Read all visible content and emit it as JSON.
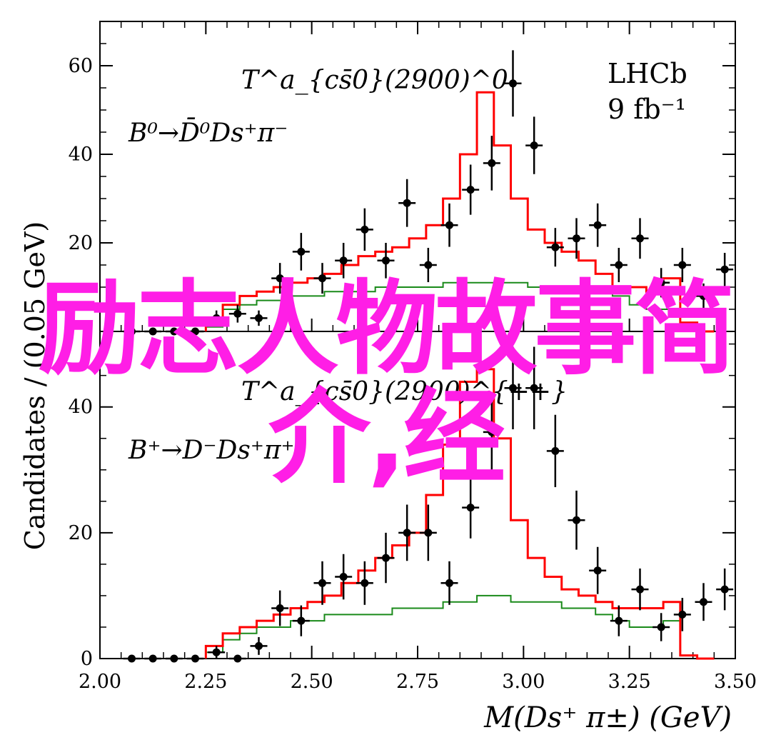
{
  "chart_data": {
    "type": "histogram-with-errorbars",
    "shared_x": {
      "xlabel": "M(Ds⁺ π±) (GeV)",
      "xlim": [
        2.0,
        3.5
      ],
      "xticks": [
        "2.00",
        "2.25",
        "2.50",
        "2.75",
        "3.00",
        "3.25",
        "3.50"
      ]
    },
    "ylabel": "Candidates / (0.05 GeV)",
    "experiment": "LHCb",
    "luminosity": "9 fb⁻¹",
    "panels": [
      {
        "id": "top",
        "resonance": "T^a_{cs̄0}(2900)^0",
        "decay": "B⁰→D̄⁰Ds⁺π⁻",
        "ylim": [
          0,
          70
        ],
        "yticks": [
          "20",
          "40",
          "60"
        ],
        "data": [
          {
            "x": 2.075,
            "y": 0
          },
          {
            "x": 2.125,
            "y": 0
          },
          {
            "x": 2.175,
            "y": 0
          },
          {
            "x": 2.225,
            "y": 0
          },
          {
            "x": 2.275,
            "y": 3
          },
          {
            "x": 2.325,
            "y": 4
          },
          {
            "x": 2.375,
            "y": 3
          },
          {
            "x": 2.425,
            "y": 12
          },
          {
            "x": 2.475,
            "y": 18
          },
          {
            "x": 2.525,
            "y": 12
          },
          {
            "x": 2.575,
            "y": 16
          },
          {
            "x": 2.625,
            "y": 23
          },
          {
            "x": 2.675,
            "y": 16
          },
          {
            "x": 2.725,
            "y": 29
          },
          {
            "x": 2.775,
            "y": 15
          },
          {
            "x": 2.825,
            "y": 24
          },
          {
            "x": 2.875,
            "y": 32
          },
          {
            "x": 2.925,
            "y": 38
          },
          {
            "x": 2.975,
            "y": 56
          },
          {
            "x": 3.025,
            "y": 42
          },
          {
            "x": 3.075,
            "y": 19
          },
          {
            "x": 3.125,
            "y": 21
          },
          {
            "x": 3.175,
            "y": 24
          },
          {
            "x": 3.225,
            "y": 15
          },
          {
            "x": 3.275,
            "y": 21
          },
          {
            "x": 3.325,
            "y": 11
          },
          {
            "x": 3.375,
            "y": 15
          },
          {
            "x": 3.425,
            "y": 8
          },
          {
            "x": 3.475,
            "y": 14
          }
        ],
        "total_fit": [
          2,
          6,
          8,
          9,
          10,
          11,
          12,
          13,
          15,
          17,
          18,
          19,
          21,
          24,
          30,
          40,
          54,
          42,
          30,
          23,
          20,
          18,
          16,
          13,
          10,
          10,
          9,
          12,
          2,
          0
        ],
        "component": [
          1,
          5,
          6,
          7,
          7,
          8,
          8,
          9,
          9,
          9,
          10,
          10,
          10,
          10,
          11,
          11,
          11,
          11,
          11,
          10,
          10,
          10,
          10,
          9,
          8,
          6,
          5,
          5,
          2,
          0
        ]
      },
      {
        "id": "bottom",
        "resonance": "T^a_{cs̄0}(2900)^{++}",
        "decay": "B⁺→D⁻Ds⁺π⁺",
        "ylim": [
          0,
          52
        ],
        "yticks": [
          "0",
          "20",
          "40"
        ],
        "data": [
          {
            "x": 2.075,
            "y": 0
          },
          {
            "x": 2.125,
            "y": 0
          },
          {
            "x": 2.175,
            "y": 0
          },
          {
            "x": 2.225,
            "y": 0
          },
          {
            "x": 2.275,
            "y": 1
          },
          {
            "x": 2.325,
            "y": 0
          },
          {
            "x": 2.375,
            "y": 2
          },
          {
            "x": 2.425,
            "y": 8
          },
          {
            "x": 2.475,
            "y": 6
          },
          {
            "x": 2.525,
            "y": 12
          },
          {
            "x": 2.575,
            "y": 13
          },
          {
            "x": 2.625,
            "y": 12
          },
          {
            "x": 2.675,
            "y": 16
          },
          {
            "x": 2.725,
            "y": 20
          },
          {
            "x": 2.775,
            "y": 20
          },
          {
            "x": 2.825,
            "y": 12
          },
          {
            "x": 2.875,
            "y": 24
          },
          {
            "x": 2.925,
            "y": 36
          },
          {
            "x": 2.975,
            "y": 43
          },
          {
            "x": 3.025,
            "y": 43
          },
          {
            "x": 3.075,
            "y": 33
          },
          {
            "x": 3.125,
            "y": 22
          },
          {
            "x": 3.175,
            "y": 14
          },
          {
            "x": 3.225,
            "y": 6
          },
          {
            "x": 3.275,
            "y": 11
          },
          {
            "x": 3.325,
            "y": 5
          },
          {
            "x": 3.375,
            "y": 7
          },
          {
            "x": 3.425,
            "y": 9
          },
          {
            "x": 3.475,
            "y": 11
          }
        ],
        "total_fit": [
          2,
          4,
          5,
          6,
          7,
          8,
          9,
          10,
          12,
          14,
          16,
          18,
          20,
          26,
          34,
          44,
          46,
          35,
          22,
          16,
          13,
          11,
          10,
          9,
          8,
          8,
          8,
          9,
          0.5,
          0
        ],
        "component": [
          1,
          3,
          4,
          5,
          5,
          6,
          6,
          7,
          7,
          7,
          7,
          8,
          8,
          8,
          9,
          9,
          10,
          10,
          9,
          9,
          9,
          8,
          8,
          7,
          6,
          5,
          5,
          6,
          0.5,
          0
        ]
      }
    ],
    "colors": {
      "total_fit": "#ff0000",
      "component": "#1a8a1a",
      "data": "#000000"
    }
  },
  "overlay": {
    "line1": "励志人物故事简",
    "line2": "介,经",
    "color": "#ff1ee6"
  }
}
